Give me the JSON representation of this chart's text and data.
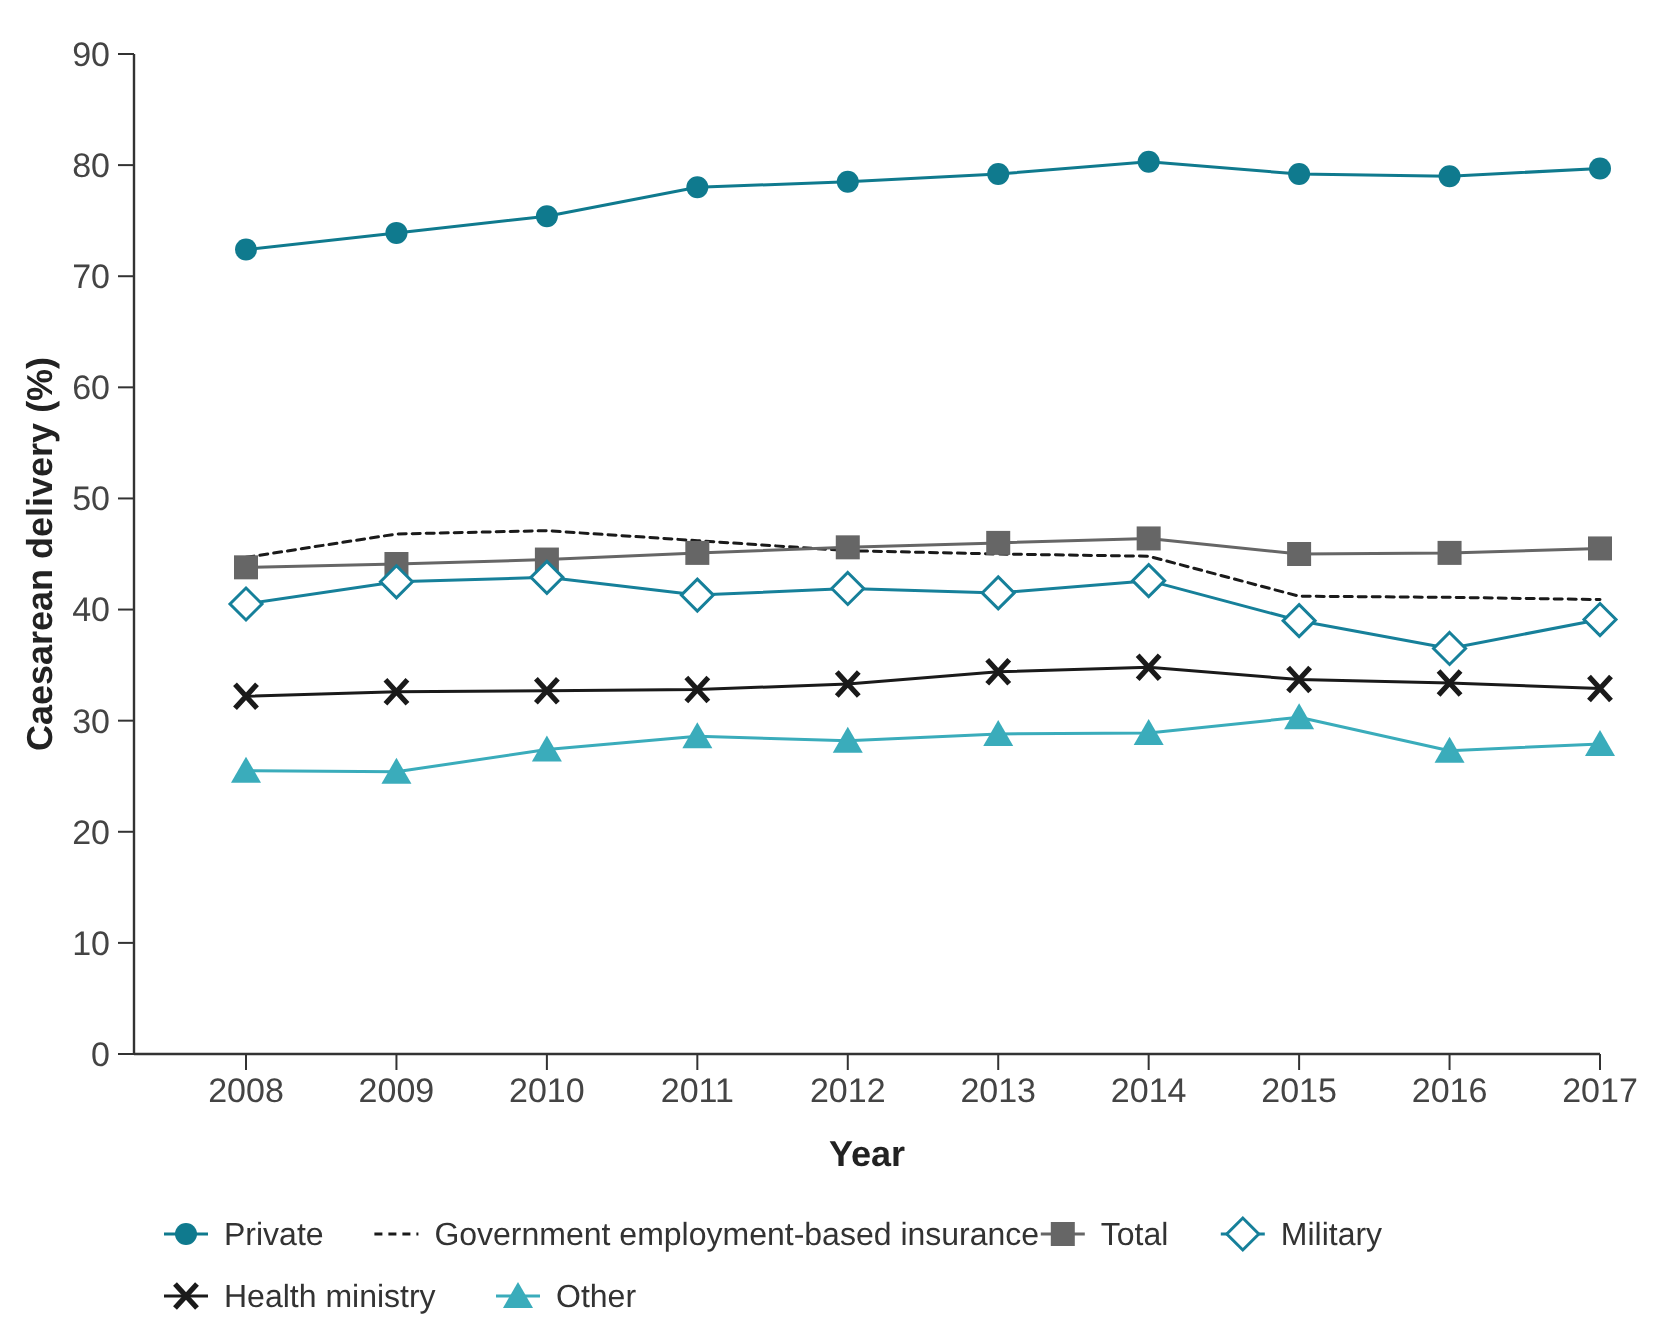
{
  "chart_data": {
    "type": "line",
    "xlabel": "Year",
    "ylabel": "Caesarean delivery (%)",
    "categories": [
      "2008",
      "2009",
      "2010",
      "2011",
      "2012",
      "2013",
      "2014",
      "2015",
      "2016",
      "2017"
    ],
    "ylim": [
      0,
      90
    ],
    "yticks": [
      0,
      10,
      20,
      30,
      40,
      50,
      60,
      70,
      80,
      90
    ],
    "grid": false,
    "legend": "bottom",
    "series": [
      {
        "name": "Private",
        "color": "#0f7a8e",
        "marker": "circle",
        "line_style": "solid",
        "values": [
          72.4,
          73.9,
          75.4,
          78.0,
          78.5,
          79.2,
          80.3,
          79.2,
          79.0,
          79.7
        ]
      },
      {
        "name": "Government employment-based insurance",
        "color": "#1a1a1a",
        "marker": "none",
        "line_style": "dashed",
        "values": [
          44.7,
          46.8,
          47.1,
          46.2,
          45.3,
          45.0,
          44.8,
          41.2,
          41.1,
          40.9
        ]
      },
      {
        "name": "Total",
        "color": "#666666",
        "marker": "square",
        "line_style": "solid",
        "values": [
          43.8,
          44.1,
          44.5,
          45.1,
          45.6,
          46.0,
          46.4,
          45.0,
          45.1,
          45.5
        ]
      },
      {
        "name": "Military",
        "color": "#16809a",
        "marker": "diamond",
        "line_style": "solid",
        "values": [
          40.5,
          42.5,
          42.9,
          41.3,
          41.9,
          41.5,
          42.6,
          39.0,
          36.5,
          39.1
        ]
      },
      {
        "name": "Health ministry",
        "color": "#1a1a1a",
        "marker": "cross",
        "line_style": "solid",
        "values": [
          32.2,
          32.6,
          32.7,
          32.8,
          33.3,
          34.4,
          34.8,
          33.7,
          33.4,
          32.9
        ]
      },
      {
        "name": "Other",
        "color": "#3aacbb",
        "marker": "triangle",
        "line_style": "solid",
        "values": [
          25.5,
          25.4,
          27.4,
          28.6,
          28.2,
          28.8,
          28.9,
          30.3,
          27.3,
          27.9
        ]
      }
    ]
  }
}
